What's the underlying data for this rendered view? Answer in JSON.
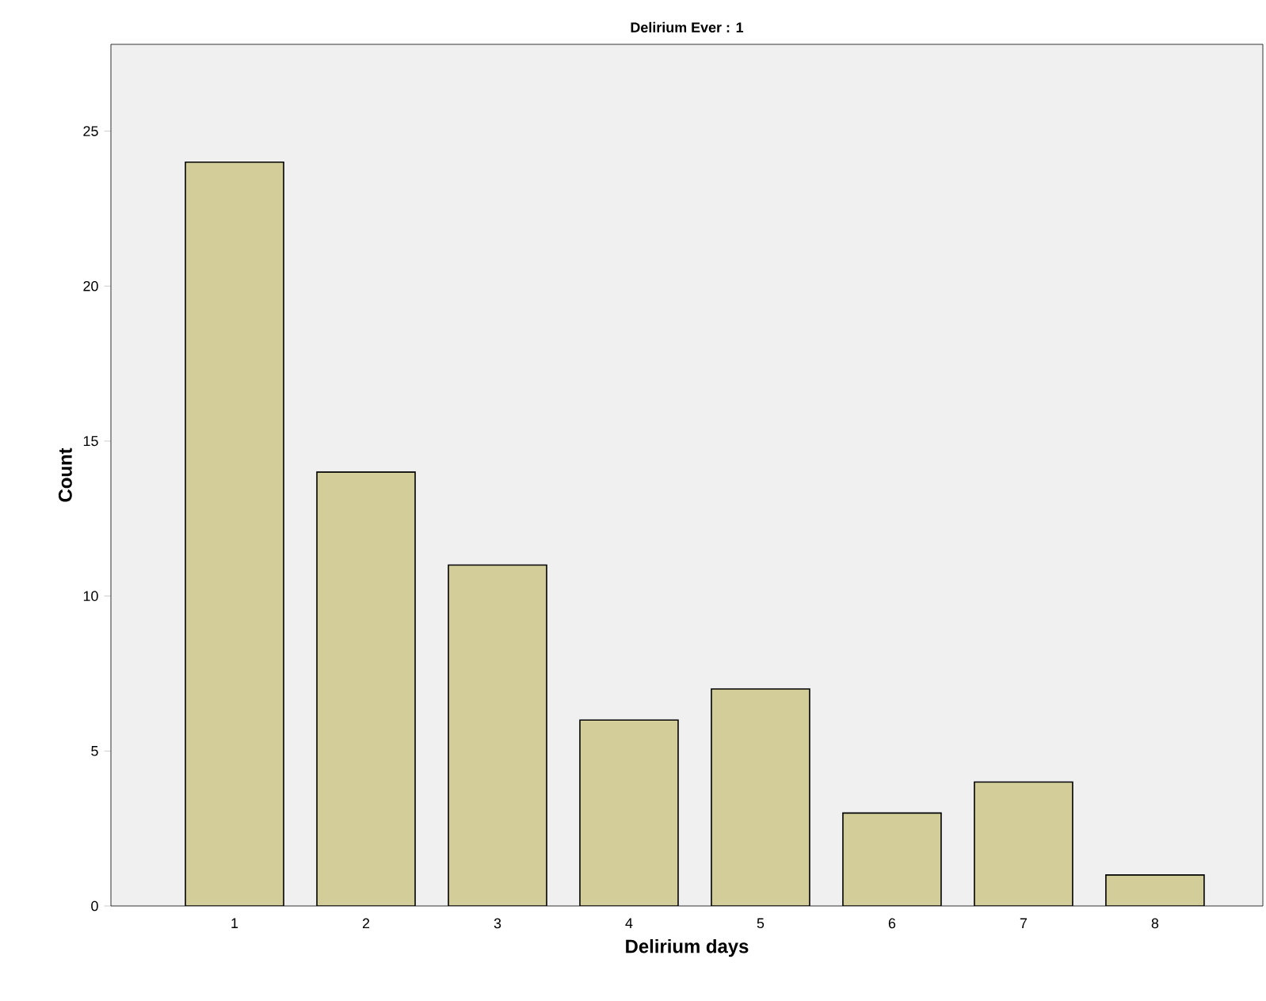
{
  "chart_data": {
    "type": "bar",
    "title": "Delirium Ever : 1",
    "xlabel": "Delirium days",
    "ylabel": "Count",
    "categories": [
      "1",
      "2",
      "3",
      "4",
      "5",
      "6",
      "7",
      "8"
    ],
    "values": [
      24,
      14,
      11,
      6,
      7,
      3,
      4,
      1
    ],
    "color": "#d3ce99",
    "ylim": [
      0,
      27.8
    ],
    "yticks": [
      0,
      5,
      10,
      15,
      20,
      25
    ]
  }
}
